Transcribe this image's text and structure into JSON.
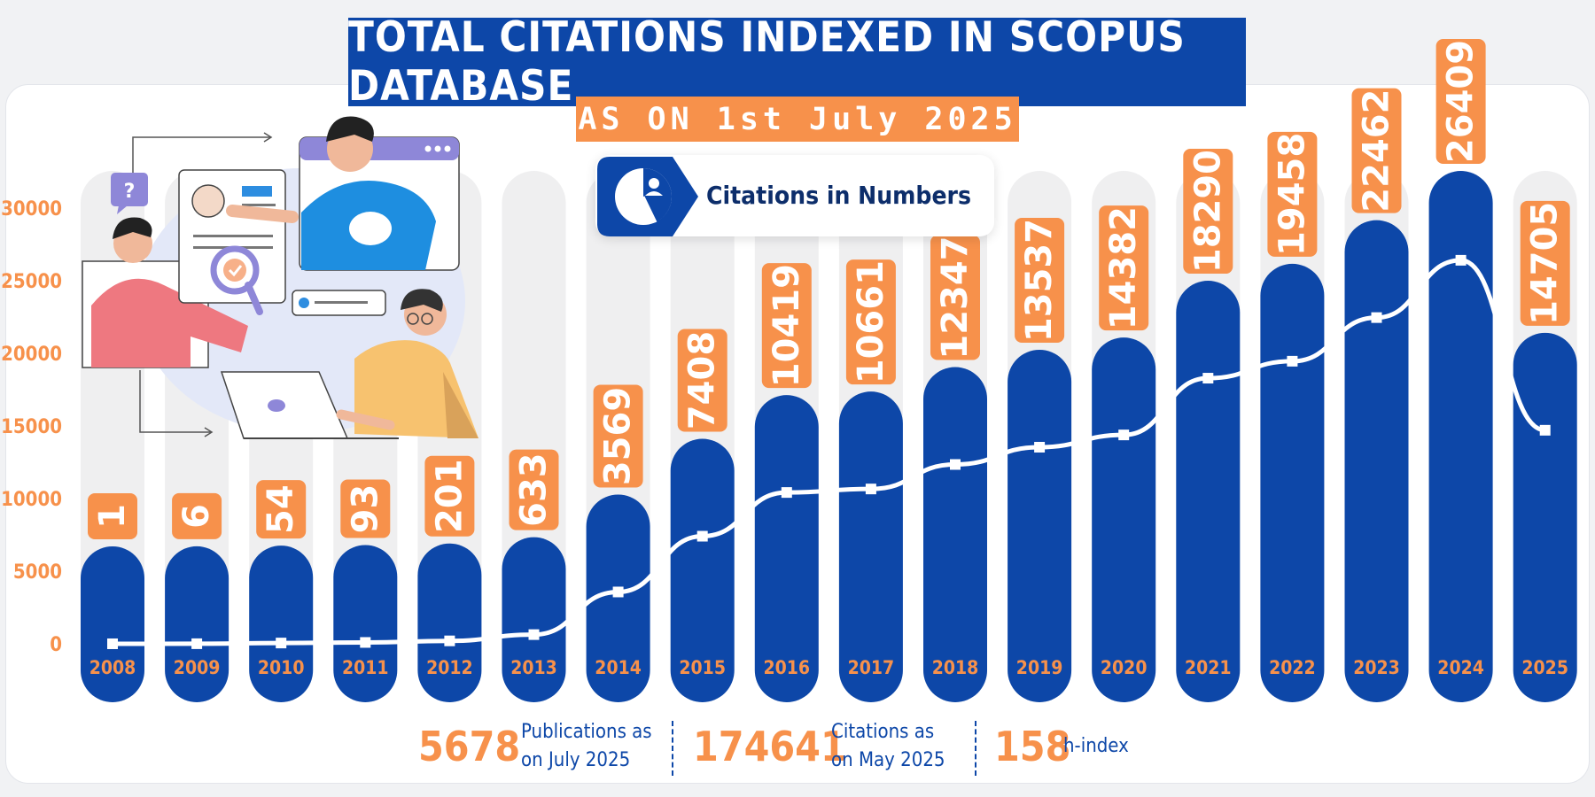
{
  "header": {
    "title": "TOTAL CITATIONS INDEXED IN SCOPUS DATABASE",
    "subtitle": "AS ON 1st July 2025",
    "badge_label": "Citations in Numbers",
    "badge_icon": "pie-chart-user-icon"
  },
  "colors": {
    "primary_blue": "#0d47a8",
    "accent_orange": "#f7914b",
    "track_gray": "#efeff0",
    "line_white": "#ffffff"
  },
  "illustration": {
    "description_icon": "team-reviewing-profile-illustration",
    "question_mark": "?"
  },
  "chart_data": {
    "type": "bar",
    "categories": [
      "2008",
      "2009",
      "2010",
      "2011",
      "2012",
      "2013",
      "2014",
      "2015",
      "2016",
      "2017",
      "2018",
      "2019",
      "2020",
      "2021",
      "2022",
      "2023",
      "2024",
      "2025"
    ],
    "values": [
      1,
      6,
      54,
      93,
      201,
      633,
      3569,
      7408,
      10419,
      10661,
      12347,
      13537,
      14382,
      18290,
      19458,
      22462,
      26409,
      14705
    ],
    "value_labels": [
      "1",
      "6",
      "54",
      "93",
      "201",
      "633",
      "3569",
      "7408",
      "10419",
      "10661",
      "12347",
      "13537",
      "14382",
      "18290",
      "19458",
      "22462",
      "26409",
      "14705"
    ],
    "line_series": {
      "values": [
        1,
        6,
        54,
        93,
        201,
        633,
        3569,
        7408,
        10419,
        10661,
        12347,
        13537,
        14382,
        18290,
        19458,
        22462,
        26409,
        14705
      ],
      "marker": "square"
    },
    "ylim": [
      0,
      30000
    ],
    "yticks": [
      0,
      5000,
      10000,
      15000,
      20000,
      25000,
      30000
    ],
    "ytick_labels": [
      "0",
      "5000",
      "10000",
      "15000",
      "20000",
      "25000",
      "30000"
    ],
    "xlabel": "",
    "ylabel": "",
    "legend": "none",
    "grid": false
  },
  "stats": [
    {
      "value": "5678",
      "label_line1": "Publications as",
      "label_line2": "on July 2025"
    },
    {
      "value": "174641",
      "label_line1": "Citations as",
      "label_line2": "on May 2025"
    },
    {
      "value": "158",
      "label_line1": "h-index",
      "label_line2": ""
    }
  ]
}
